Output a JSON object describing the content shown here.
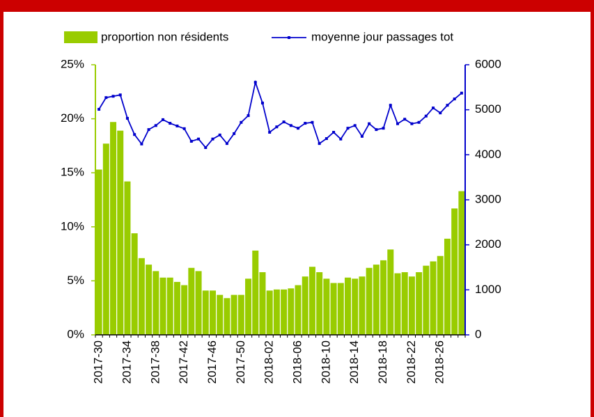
{
  "chart_data": {
    "type": "bar",
    "categories": [
      "2017-30",
      null,
      null,
      null,
      "2017-34",
      null,
      null,
      null,
      "2017-38",
      null,
      null,
      null,
      "2017-42",
      null,
      null,
      null,
      "2017-46",
      null,
      null,
      null,
      "2017-50",
      null,
      null,
      null,
      "2018-02",
      null,
      null,
      null,
      "2018-06",
      null,
      null,
      null,
      "2018-10",
      null,
      null,
      null,
      "2018-14",
      null,
      null,
      null,
      "2018-18",
      null,
      null,
      null,
      "2018-22",
      null,
      null,
      null,
      "2018-26",
      null,
      null,
      null
    ],
    "series": [
      {
        "name": "proportion non résidents",
        "color": "#99cc00",
        "type": "bar",
        "values": [
          15.3,
          17.7,
          19.7,
          18.9,
          14.2,
          9.4,
          7.1,
          6.5,
          5.9,
          5.3,
          5.3,
          4.9,
          4.6,
          6.2,
          5.9,
          4.1,
          4.1,
          3.7,
          3.4,
          3.7,
          3.7,
          5.2,
          7.8,
          5.8,
          4.1,
          4.2,
          4.2,
          4.3,
          4.6,
          5.4,
          6.3,
          5.8,
          5.2,
          4.8,
          4.8,
          5.3,
          5.2,
          5.4,
          6.2,
          6.5,
          6.9,
          7.9,
          5.7,
          5.8,
          5.4,
          5.8,
          6.4,
          6.8,
          7.3,
          8.9,
          11.7,
          13.3
        ]
      },
      {
        "name": "moyenne jour passages tot",
        "color": "#0000cc",
        "type": "line",
        "axis": "y2",
        "values": [
          5010,
          5270,
          5300,
          5330,
          4810,
          4450,
          4240,
          4560,
          4650,
          4780,
          4700,
          4640,
          4580,
          4300,
          4350,
          4160,
          4350,
          4440,
          4250,
          4470,
          4720,
          4870,
          5610,
          5150,
          4500,
          4620,
          4730,
          4650,
          4590,
          4700,
          4720,
          4250,
          4360,
          4500,
          4350,
          4590,
          4650,
          4410,
          4690,
          4560,
          4590,
          5100,
          4690,
          4790,
          4690,
          4720,
          4860,
          5040,
          4930,
          5100,
          5240,
          5370
        ]
      }
    ],
    "ylim": [
      0,
      25
    ],
    "yticks": [
      {
        "value": 0,
        "label": "0%"
      },
      {
        "value": 5,
        "label": "5%"
      },
      {
        "value": 10,
        "label": "10%"
      },
      {
        "value": 15,
        "label": "15%"
      },
      {
        "value": 20,
        "label": "20%"
      },
      {
        "value": 25,
        "label": "25%"
      }
    ],
    "y2lim": [
      0,
      6000
    ],
    "y2ticks": [
      0,
      1000,
      2000,
      3000,
      4000,
      5000,
      6000
    ],
    "legend": "top"
  }
}
